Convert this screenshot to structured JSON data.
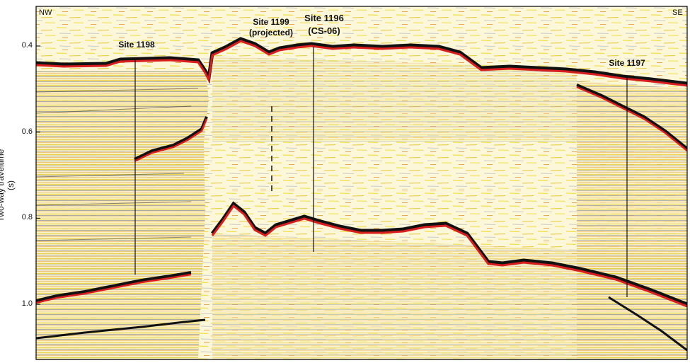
{
  "axis": {
    "ylabel": "Two-way traveltime (s)",
    "ticks": [
      {
        "value": 0.4,
        "label": "0.4"
      },
      {
        "value": 0.6,
        "label": "0.6"
      },
      {
        "value": 0.8,
        "label": "0.8"
      },
      {
        "value": 1.0,
        "label": "1.0"
      }
    ]
  },
  "direction": {
    "left": "NW",
    "right": "SE"
  },
  "sites": [
    {
      "id": "site-1198",
      "label": "Site 1198",
      "sublabel": ""
    },
    {
      "id": "site-1199",
      "label": "Site 1199",
      "sublabel": "(projected)"
    },
    {
      "id": "site-1196",
      "label": "Site 1196",
      "sublabel": "(CS-06)"
    },
    {
      "id": "site-1197",
      "label": "Site 1197",
      "sublabel": ""
    }
  ],
  "colors": {
    "reflector_red": "#d81e1e",
    "reflector_black": "#111111",
    "noise_yellow": "#f2e04a",
    "noise_orange": "#e98a2a",
    "frame": "#000000"
  }
}
